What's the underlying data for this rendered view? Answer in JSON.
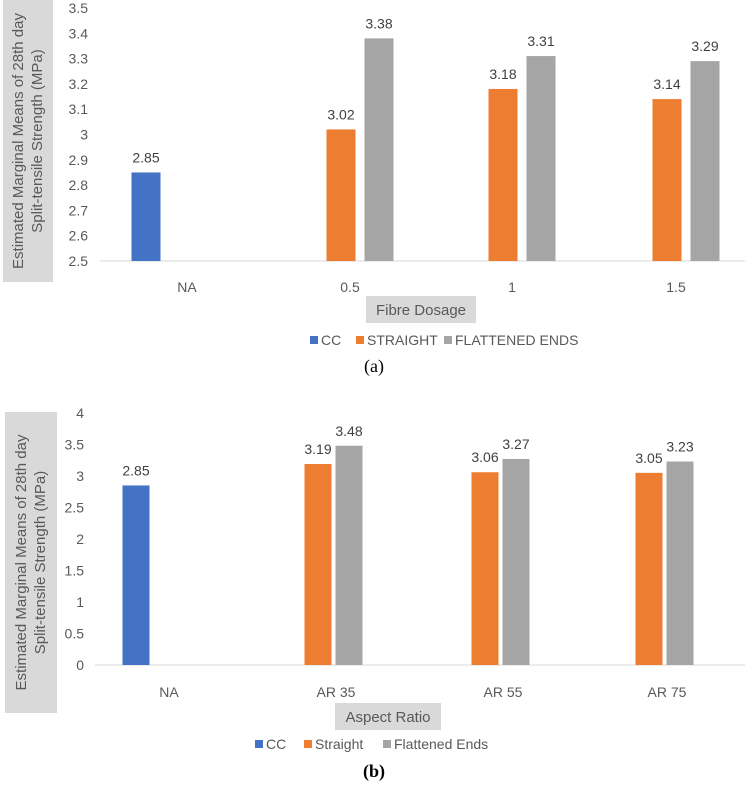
{
  "chart_data": [
    {
      "type": "bar",
      "title": "",
      "xlabel": "Fibre Dosage",
      "ylabel": "Estimated Marginal Means of 28th day Split-tensile Strength (MPa)",
      "ylabel_lines": [
        "Estimated Marginal Means of 28th day",
        "Split-tensile Strength (MPa)"
      ],
      "categories": [
        "NA",
        "0.5",
        "1",
        "1.5"
      ],
      "series": [
        {
          "name": "CC",
          "color": "#4472c4",
          "values": [
            2.85,
            null,
            null,
            null
          ]
        },
        {
          "name": "STRAIGHT",
          "color": "#ed7d31",
          "values": [
            null,
            3.02,
            3.18,
            3.14
          ]
        },
        {
          "name": "FLATTENED ENDS",
          "color": "#a5a5a5",
          "values": [
            null,
            3.38,
            3.31,
            3.29
          ]
        }
      ],
      "ylim": [
        2.5,
        3.5
      ],
      "yticks": [
        "2.5",
        "2.6",
        "2.7",
        "2.8",
        "2.9",
        "3",
        "3.1",
        "3.2",
        "3.3",
        "3.4",
        "3.5"
      ],
      "legend": "bottom",
      "grid": false,
      "caption": "(a)"
    },
    {
      "type": "bar",
      "title": "",
      "xlabel": "Aspect Ratio",
      "ylabel": "Estimated Marginal Means of 28th day Split-tensile Strength (MPa)",
      "ylabel_lines": [
        "Estimated Marginal Means of 28th day",
        "Split-tensile Strength (MPa)"
      ],
      "categories": [
        "NA",
        "AR 35",
        "AR 55",
        "AR 75"
      ],
      "series": [
        {
          "name": "CC",
          "color": "#4472c4",
          "values": [
            2.85,
            null,
            null,
            null
          ]
        },
        {
          "name": "Straight",
          "color": "#ed7d31",
          "values": [
            null,
            3.19,
            3.06,
            3.05
          ]
        },
        {
          "name": "Flattened Ends",
          "color": "#a5a5a5",
          "values": [
            null,
            3.48,
            3.27,
            3.23
          ]
        }
      ],
      "ylim": [
        0,
        4
      ],
      "yticks": [
        "0",
        "0.5",
        "1",
        "1.5",
        "2",
        "2.5",
        "3",
        "3.5",
        "4"
      ],
      "legend": "bottom",
      "grid": false,
      "caption": "(b)"
    }
  ]
}
